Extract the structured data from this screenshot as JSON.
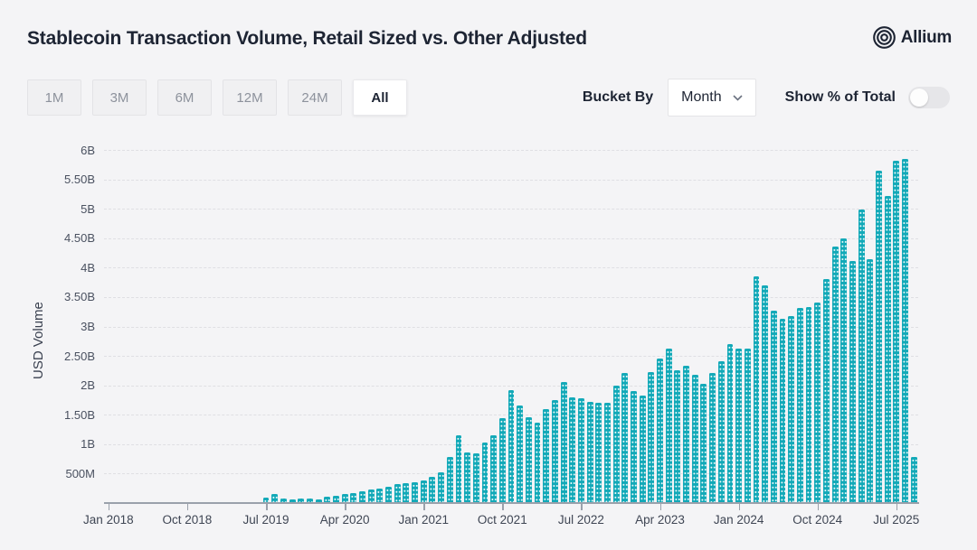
{
  "header": {
    "title": "Stablecoin Transaction Volume, Retail Sized vs. Other Adjusted",
    "logo_text": "Allium"
  },
  "controls": {
    "range_buttons": [
      {
        "label": "1M",
        "active": false
      },
      {
        "label": "3M",
        "active": false
      },
      {
        "label": "6M",
        "active": false
      },
      {
        "label": "12M",
        "active": false
      },
      {
        "label": "24M",
        "active": false
      },
      {
        "label": "All",
        "active": true
      }
    ],
    "bucket_by_label": "Bucket By",
    "bucket_by_value": "Month",
    "toggle_label": "Show % of Total",
    "toggle_on": false
  },
  "chart_data": {
    "type": "bar",
    "title": "Stablecoin Transaction Volume, Retail Sized vs. Other Adjusted",
    "xlabel": "",
    "ylabel": "USD Volume",
    "bar_color": "#12a9b8",
    "grid": true,
    "ylim_usd": [
      0,
      6000000000
    ],
    "y_tick_labels": [
      "500M",
      "1B",
      "1.50B",
      "2B",
      "2.50B",
      "3B",
      "3.50B",
      "4B",
      "4.50B",
      "5B",
      "5.50B",
      "6B"
    ],
    "y_tick_step_musd": 500,
    "x_tick_labels": [
      "Jan 2018",
      "Oct 2018",
      "Jul 2019",
      "Apr 2020",
      "Jan 2021",
      "Oct 2021",
      "Jul 2022",
      "Apr 2023",
      "Jan 2024",
      "Oct 2024",
      "Jul 2025"
    ],
    "x_tick_indices": [
      0,
      9,
      18,
      27,
      36,
      45,
      54,
      63,
      72,
      81,
      90
    ],
    "months": [
      "2018-01",
      "2018-02",
      "2018-03",
      "2018-04",
      "2018-05",
      "2018-06",
      "2018-07",
      "2018-08",
      "2018-09",
      "2018-10",
      "2018-11",
      "2018-12",
      "2019-01",
      "2019-02",
      "2019-03",
      "2019-04",
      "2019-05",
      "2019-06",
      "2019-07",
      "2019-08",
      "2019-09",
      "2019-10",
      "2019-11",
      "2019-12",
      "2020-01",
      "2020-02",
      "2020-03",
      "2020-04",
      "2020-05",
      "2020-06",
      "2020-07",
      "2020-08",
      "2020-09",
      "2020-10",
      "2020-11",
      "2020-12",
      "2021-01",
      "2021-02",
      "2021-03",
      "2021-04",
      "2021-05",
      "2021-06",
      "2021-07",
      "2021-08",
      "2021-09",
      "2021-10",
      "2021-11",
      "2021-12",
      "2022-01",
      "2022-02",
      "2022-03",
      "2022-04",
      "2022-05",
      "2022-06",
      "2022-07",
      "2022-08",
      "2022-09",
      "2022-10",
      "2022-11",
      "2022-12",
      "2023-01",
      "2023-02",
      "2023-03",
      "2023-04",
      "2023-05",
      "2023-06",
      "2023-07",
      "2023-08",
      "2023-09",
      "2023-10",
      "2023-11",
      "2023-12",
      "2024-01",
      "2024-02",
      "2024-03",
      "2024-04",
      "2024-05",
      "2024-06",
      "2024-07",
      "2024-08",
      "2024-09",
      "2024-10",
      "2024-11",
      "2024-12",
      "2025-01",
      "2025-02",
      "2025-03",
      "2025-04",
      "2025-05",
      "2025-06",
      "2025-07",
      "2025-08",
      "2025-09"
    ],
    "values_musd": [
      2,
      2,
      3,
      3,
      4,
      4,
      5,
      5,
      6,
      6,
      7,
      8,
      8,
      9,
      10,
      12,
      15,
      20,
      90,
      155,
      75,
      60,
      75,
      77,
      55,
      100,
      118,
      148,
      170,
      200,
      230,
      250,
      270,
      320,
      335,
      350,
      390,
      440,
      520,
      780,
      1150,
      860,
      850,
      1030,
      1150,
      1440,
      1920,
      1650,
      1460,
      1360,
      1590,
      1750,
      2060,
      1800,
      1780,
      1720,
      1700,
      1700,
      1990,
      2210,
      1910,
      1820,
      2230,
      2460,
      2620,
      2260,
      2340,
      2180,
      2030,
      2210,
      2410,
      2700,
      2620,
      2620,
      3850,
      3700,
      3270,
      3130,
      3170,
      3310,
      3330,
      3410,
      3800,
      4360,
      4490,
      4110,
      4980,
      4140,
      5640,
      5220,
      5810,
      5840,
      790
    ]
  }
}
